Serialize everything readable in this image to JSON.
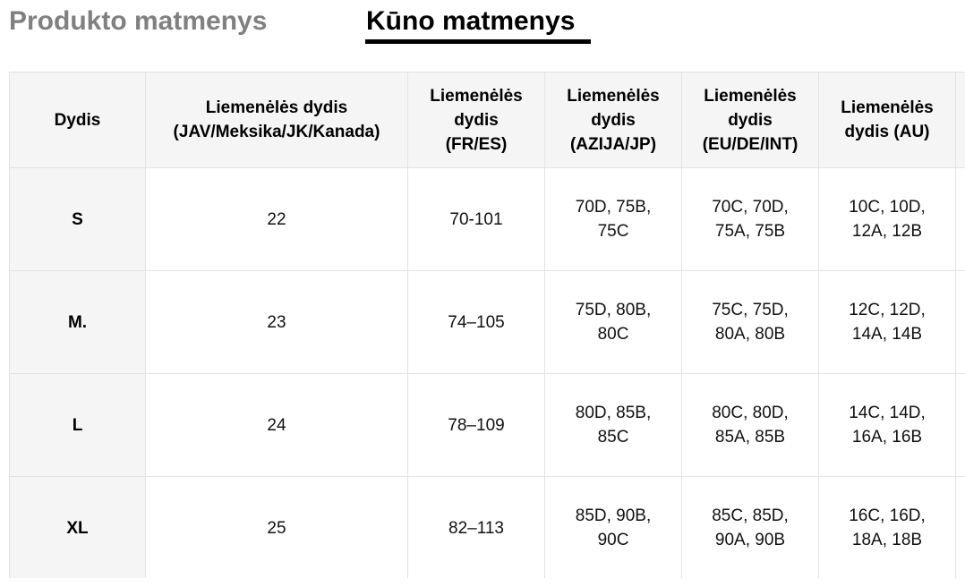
{
  "tabs": [
    {
      "label": "Produkto matmenys",
      "active": false
    },
    {
      "label": "Kūno matmenys",
      "active": true
    }
  ],
  "table": {
    "headers": [
      "Dydis",
      "Liemenėlės dydis (JAV/Meksika/JK/Kanada)",
      "Liemenėlės dydis (FR/ES)",
      "Liemenėlės dydis (AZIJA/JP)",
      "Liemenėlės dydis (EU/DE/INT)",
      "Liemenėlės dydis (AU)"
    ],
    "rows": [
      [
        "S",
        "22",
        "70-101",
        "70D, 75B, 75C",
        "70C, 70D, 75A, 75B",
        "10C, 10D, 12A, 12B"
      ],
      [
        "M.",
        "23",
        "74–105",
        "75D, 80B, 80C",
        "75C, 75D, 80A, 80B",
        "12C, 12D, 14A, 14B"
      ],
      [
        "L",
        "24",
        "78–109",
        "80D, 85B, 85C",
        "80C, 80D, 85A, 85B",
        "14C, 14D, 16A, 16B"
      ],
      [
        "XL",
        "25",
        "82–113",
        "85D, 90B, 90C",
        "85C, 85D, 90A, 90B",
        "16C, 16D, 18A, 18B"
      ]
    ]
  },
  "colors": {
    "active_tab": "#000000",
    "inactive_tab": "#808080",
    "header_bg": "#f5f5f5",
    "border": "#e3e3e3"
  }
}
